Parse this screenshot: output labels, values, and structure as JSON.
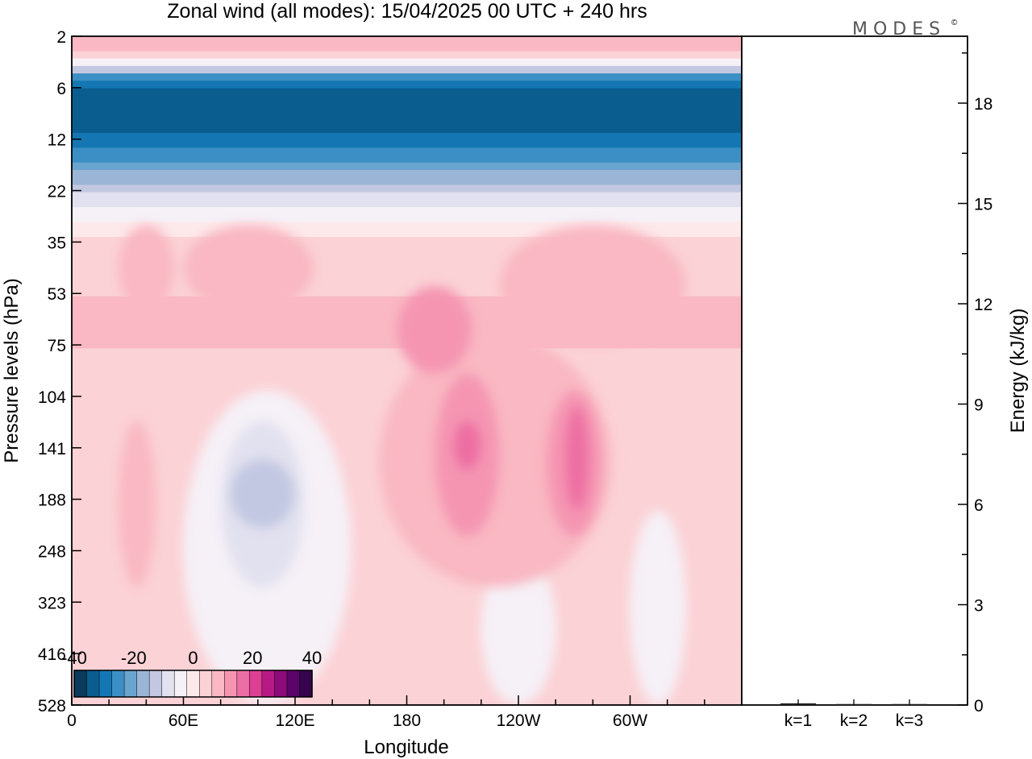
{
  "title": "Zonal wind (all modes):  15/04/2025  00 UTC  + 240 hrs",
  "logo": {
    "text": "MODES",
    "mark": "©"
  },
  "chart_data": [
    {
      "type": "heatmap",
      "variable": "Zonal wind",
      "xlabel": "Longitude",
      "ylabel": "Pressure levels (hPa)",
      "x_ticks": [
        "0",
        "60E",
        "120E",
        "180",
        "120W",
        "60W"
      ],
      "y_ticks": [
        "2",
        "6",
        "12",
        "22",
        "35",
        "53",
        "75",
        "104",
        "141",
        "188",
        "248",
        "323",
        "416",
        "528"
      ],
      "y_reversed": true,
      "colorbar": {
        "labels": [
          "-40",
          "-20",
          "0",
          "20",
          "40"
        ],
        "range": [
          -40,
          40
        ],
        "colors": [
          "#0a3a5c",
          "#0a5d8f",
          "#1477b3",
          "#3b8fc4",
          "#6aa5cf",
          "#9bb5d6",
          "#c3c8e2",
          "#e2e1ef",
          "#f5f1f7",
          "#fde9ea",
          "#fbd2d6",
          "#f9b8c3",
          "#f595b2",
          "#ed6ea3",
          "#dc3f93",
          "#b81a85",
          "#8d0b7a",
          "#5c0469",
          "#36034f"
        ]
      },
      "regions": [
        {
          "value": 6,
          "lon": [
            0,
            360
          ],
          "lev": [
            200,
            528
          ]
        },
        {
          "value": -4,
          "lon": [
            60,
            150
          ],
          "lev": [
            100,
            528
          ]
        },
        {
          "value": -7,
          "lon": [
            80,
            125
          ],
          "lev": [
            120,
            300
          ]
        },
        {
          "value": -11,
          "lon": [
            85,
            120
          ],
          "lev": [
            150,
            220
          ]
        },
        {
          "value": -4,
          "lon": [
            220,
            260
          ],
          "lev": [
            250,
            528
          ]
        },
        {
          "value": -4,
          "lon": [
            300,
            330
          ],
          "lev": [
            200,
            528
          ]
        },
        {
          "value": 10,
          "lon": [
            25,
            55
          ],
          "lev": [
            30,
            60
          ]
        },
        {
          "value": 10,
          "lon": [
            60,
            130
          ],
          "lev": [
            30,
            60
          ]
        },
        {
          "value": 10,
          "lon": [
            230,
            330
          ],
          "lev": [
            30,
            75
          ]
        },
        {
          "value": 10,
          "lon": [
            25,
            45
          ],
          "lev": [
            120,
            300
          ]
        },
        {
          "value": 10,
          "lon": [
            165,
            290
          ],
          "lev": [
            70,
            300
          ]
        },
        {
          "value": 14,
          "lon": [
            175,
            215
          ],
          "lev": [
            50,
            90
          ]
        },
        {
          "value": 14,
          "lon": [
            195,
            230
          ],
          "lev": [
            90,
            230
          ]
        },
        {
          "value": 14,
          "lon": [
            255,
            285
          ],
          "lev": [
            100,
            230
          ]
        },
        {
          "value": 18,
          "lon": [
            205,
            220
          ],
          "lev": [
            120,
            160
          ]
        },
        {
          "value": 18,
          "lon": [
            265,
            278
          ],
          "lev": [
            110,
            200
          ]
        }
      ]
    },
    {
      "type": "bar",
      "categories": [
        "k=1",
        "k=2",
        "k=3"
      ],
      "values": [
        0.05,
        0.03,
        0.03
      ],
      "ylabel": "Energy (kJ/kg)",
      "y_ticks": [
        0,
        3,
        6,
        9,
        12,
        15,
        18
      ],
      "ylim": [
        0,
        20
      ]
    }
  ]
}
